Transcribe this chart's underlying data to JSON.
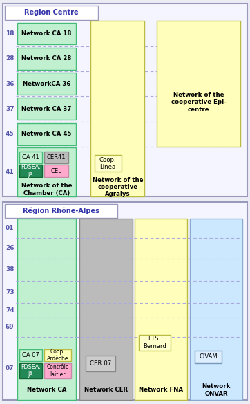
{
  "fig_width": 3.62,
  "fig_height": 5.84,
  "dpi": 100,
  "bg_color": "#ececf5",
  "region1": {
    "title": "Region Centre",
    "outer_ec": "#9999bb",
    "outer_bg": "#f5f5ff",
    "title_color": "#3333aa",
    "row_label_color": "#5555aa",
    "dash_color": "#aaaadd",
    "row_labels": [
      "18",
      "28",
      "36",
      "37",
      "45",
      "41"
    ],
    "col1_bg": "#c0f0d0",
    "col1_ec": "#44bb77",
    "col2_bg": "#ffffbb",
    "col2_ec": "#bbbb44",
    "col3_bg": "#ffffbb",
    "col3_ec": "#bbbb44",
    "network_labels": [
      "Network CA 18",
      "Network CA 28",
      "NetworkCA 36",
      "Network CA 37",
      "Network CA 45"
    ],
    "col2_label": "Network of the\ncooperative\nAgralys",
    "col3_label": "Network of the\ncooperative Epi-\ncentre",
    "chamber_label": "Network of the\nChamber (CA)"
  },
  "region2": {
    "title": "Région Rhône-Alpes",
    "outer_ec": "#9999bb",
    "outer_bg": "#f5f5ff",
    "title_color": "#3333aa",
    "row_label_color": "#5555aa",
    "dash_color": "#aaaadd",
    "row_labels": [
      "01",
      "26",
      "38",
      "73",
      "74",
      "69",
      "07"
    ],
    "col_colors": [
      "#c0f0d0",
      "#bbbbbb",
      "#ffffbb",
      "#cce8ff"
    ],
    "col_ecs": [
      "#44bb77",
      "#888888",
      "#bbbb44",
      "#88aacc"
    ],
    "col_labels": [
      "Network CA",
      "Network CER",
      "Network FNA",
      "Network\nONVAR"
    ]
  }
}
